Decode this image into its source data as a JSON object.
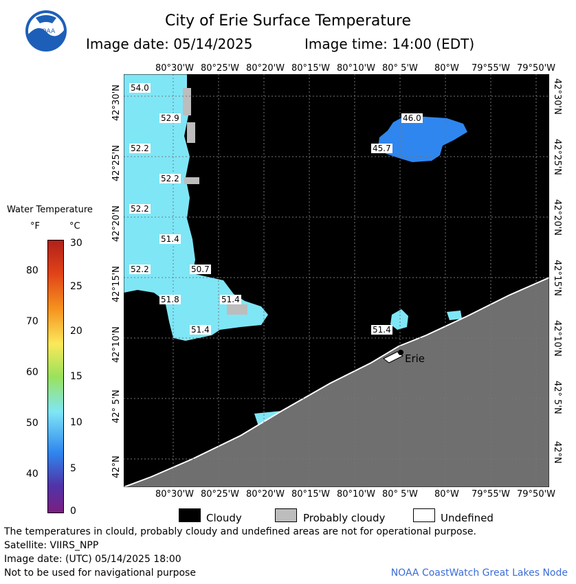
{
  "header": {
    "title": "City of Erie Surface Temperature",
    "image_date": "Image date: 05/14/2025",
    "image_time": "Image time: 14:00 (EDT)",
    "logo_text": "NOAA"
  },
  "map": {
    "top_lon_labels": [
      "80°30'W",
      "80°25'W",
      "80°20'W",
      "80°15'W",
      "80°10'W",
      "80° 5'W",
      "80°W",
      "79°55'W",
      "79°50'W"
    ],
    "bottom_lon_labels": [
      "80°30'W",
      "80°25'W",
      "80°20'W",
      "80°15'W",
      "80°10'W",
      "80° 5'W",
      "80°W",
      "79°55'W",
      "79°50'W"
    ],
    "lat_labels": [
      "42°30'N",
      "42°25'N",
      "42°20'N",
      "42°15'N",
      "42°10'N",
      "42° 5'N",
      "42°N"
    ],
    "temperature_labels": [
      "54.0",
      "52.9",
      "52.2",
      "52.2",
      "52.2",
      "51.4",
      "52.2",
      "50.7",
      "51.8",
      "51.4",
      "51.4",
      "46.0",
      "45.7",
      "51.4"
    ],
    "city": "Erie",
    "colors": {
      "water_warm": "#7fe6f6",
      "water_cool": "#2f86ee",
      "cloudy": "#000000",
      "probably_cloudy": "#bdbdbd",
      "land": "#6f6f6f",
      "undefined": "#ffffff"
    }
  },
  "colorbar": {
    "title": "Water Temperature",
    "unit_f": "°F",
    "unit_c": "°C",
    "f_ticks": [
      "80",
      "70",
      "60",
      "50",
      "40"
    ],
    "c_ticks": [
      "30",
      "25",
      "20",
      "15",
      "10",
      "5",
      "0"
    ]
  },
  "legend": {
    "cloudy": "Cloudy",
    "probably_cloudy": "Probably cloudy",
    "undefined": "Undefined"
  },
  "footer": {
    "note": "The temperatures in clould, probably cloudy and undefined areas are not for operational purpose.",
    "satellite": "Satellite: VIIRS_NPP",
    "utc_date": "Image date: (UTC) 05/14/2025  18:00",
    "nav": "Not to be used for navigational purpose",
    "credit": "NOAA CoastWatch Great Lakes Node"
  }
}
